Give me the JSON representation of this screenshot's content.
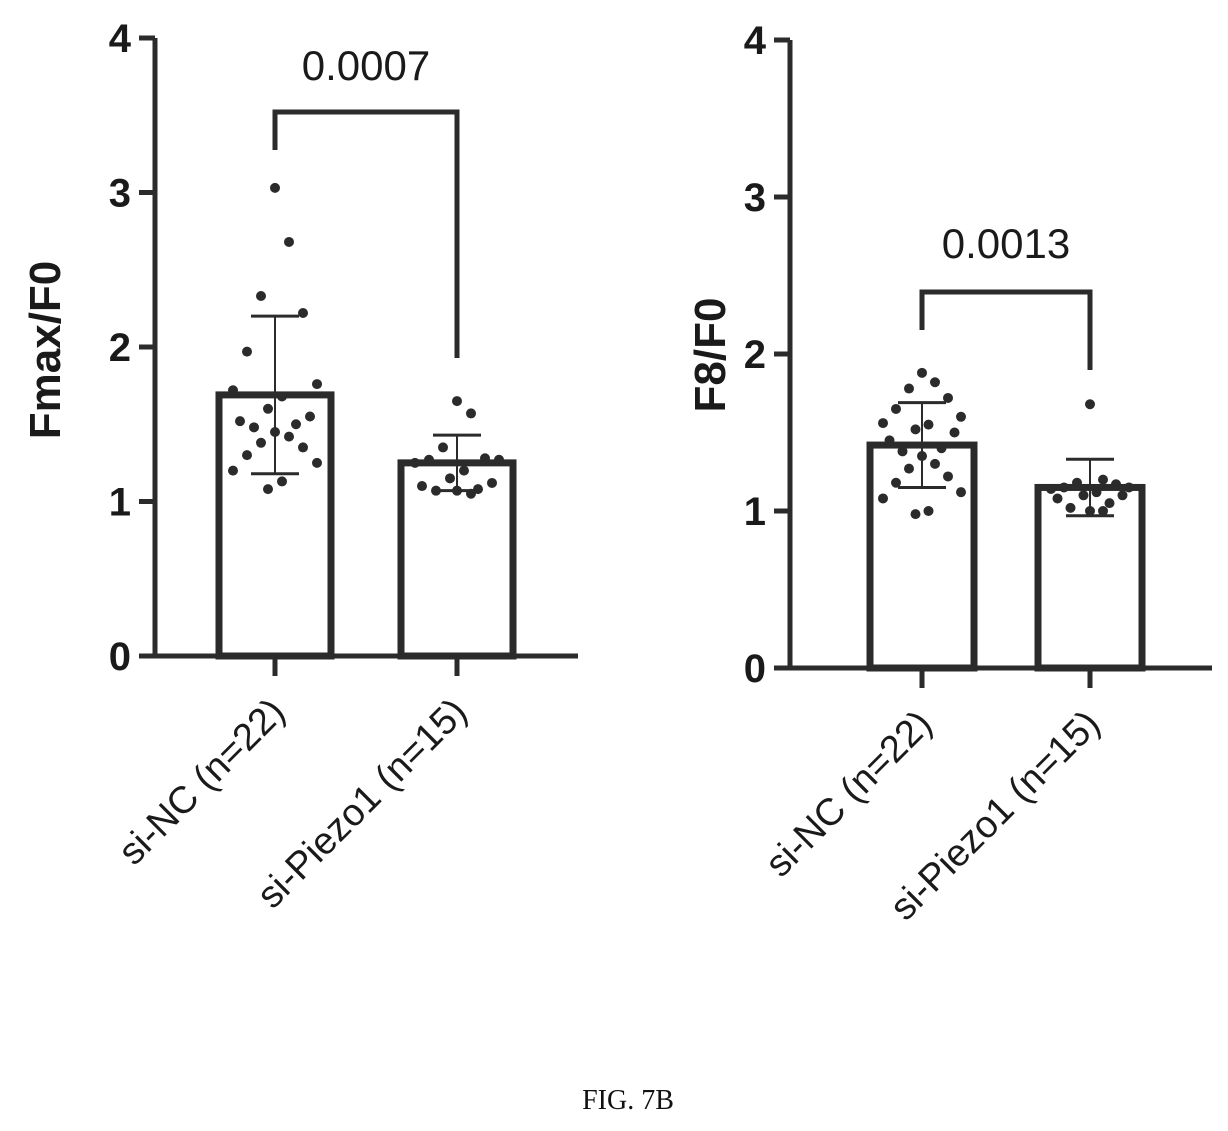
{
  "chart_data": [
    {
      "type": "bar",
      "ylabel": "Fmax/F0",
      "ylim": [
        0,
        4
      ],
      "yticks": [
        0,
        1,
        2,
        3,
        4
      ],
      "categories": [
        "si-NC (n=22)",
        "si-Piezo1 (n=15)"
      ],
      "values": [
        1.69,
        1.25
      ],
      "sd": [
        0.51,
        0.18
      ],
      "points": [
        [
          3.03,
          2.68,
          2.33,
          2.22,
          1.97,
          1.76,
          1.72,
          1.68,
          1.6,
          1.55,
          1.52,
          1.5,
          1.48,
          1.45,
          1.42,
          1.38,
          1.35,
          1.3,
          1.25,
          1.2,
          1.13,
          1.08
        ],
        [
          1.65,
          1.57,
          1.35,
          1.28,
          1.27,
          1.27,
          1.25,
          1.2,
          1.15,
          1.12,
          1.1,
          1.08,
          1.07,
          1.07,
          1.05
        ]
      ],
      "comparison": {
        "label": "0.0007"
      }
    },
    {
      "type": "bar",
      "ylabel": "F8/F0",
      "ylim": [
        0,
        4
      ],
      "yticks": [
        0,
        1,
        2,
        3,
        4
      ],
      "categories": [
        "si-NC (n=22)",
        "si-Piezo1 (n=15)"
      ],
      "values": [
        1.42,
        1.15
      ],
      "sd": [
        0.27,
        0.18
      ],
      "points": [
        [
          1.88,
          1.82,
          1.78,
          1.72,
          1.65,
          1.6,
          1.56,
          1.55,
          1.52,
          1.5,
          1.45,
          1.4,
          1.38,
          1.35,
          1.3,
          1.27,
          1.22,
          1.18,
          1.12,
          1.08,
          1.0,
          0.98
        ],
        [
          1.68,
          1.2,
          1.18,
          1.17,
          1.15,
          1.15,
          1.14,
          1.12,
          1.1,
          1.1,
          1.08,
          1.05,
          1.02,
          1.0,
          1.0
        ]
      ],
      "comparison": {
        "label": "0.0013"
      }
    }
  ],
  "caption": "FIG. 7B"
}
